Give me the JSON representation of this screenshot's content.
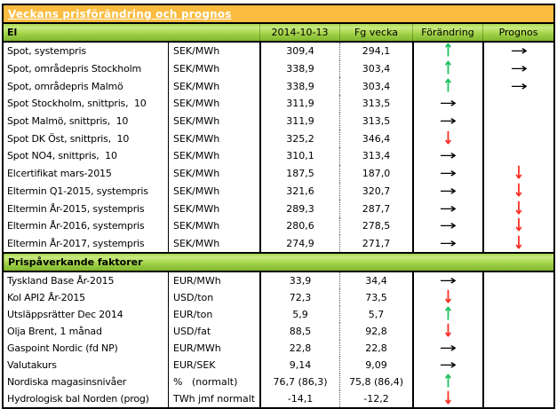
{
  "title": "Veckans prisförändring och prognos",
  "arrow_glyphs": {
    "up": "↑",
    "down": "↓",
    "flat": "→"
  },
  "colors": {
    "title_bar_bg": "#FBBC3F",
    "title_text": "#FFFFFF",
    "section_bar_green": "#8CC63F",
    "arrow_up": "#1FC15F",
    "arrow_down": "#FF2D23",
    "arrow_flat": "#000000"
  },
  "sections": [
    {
      "header": "El",
      "columns": [
        "2014-10-13",
        "Fg vecka",
        "Förändring",
        "Prognos"
      ],
      "rows": [
        {
          "label": "Spot, systempris",
          "unit": "SEK/MWh",
          "current": "309,4",
          "prev": "294,1",
          "change": "up",
          "forecast": "flat"
        },
        {
          "label": "Spot, områdepris Stockholm",
          "unit": "SEK/MWh",
          "current": "338,9",
          "prev": "303,4",
          "change": "up",
          "forecast": "flat"
        },
        {
          "label": "Spot, områdepris Malmö",
          "unit": "SEK/MWh",
          "current": "338,9",
          "prev": "303,4",
          "change": "up",
          "forecast": "flat"
        },
        {
          "label": "Spot Stockholm, snittpris,  10",
          "unit": "SEK/MWh",
          "current": "311,9",
          "prev": "313,5",
          "change": "flat",
          "forecast": ""
        },
        {
          "label": "Spot Malmö, snittpris,  10",
          "unit": "SEK/MWh",
          "current": "311,9",
          "prev": "313,5",
          "change": "flat",
          "forecast": ""
        },
        {
          "label": "Spot DK Öst, snittpris,  10",
          "unit": "SEK/MWh",
          "current": "325,2",
          "prev": "346,4",
          "change": "down",
          "forecast": ""
        },
        {
          "label": "Spot NO4, snittpris,  10",
          "unit": "SEK/MWh",
          "current": "310,1",
          "prev": "313,4",
          "change": "flat",
          "forecast": ""
        },
        {
          "label": "Elcertifikat mars-2015",
          "unit": "SEK/MWh",
          "current": "187,5",
          "prev": "187,0",
          "change": "flat",
          "forecast": "down"
        },
        {
          "label": "Eltermin Q1-2015, systempris",
          "unit": "SEK/MWh",
          "current": "321,6",
          "prev": "320,7",
          "change": "flat",
          "forecast": "down"
        },
        {
          "label": "Eltermin År-2015, systempris",
          "unit": "SEK/MWh",
          "current": "289,3",
          "prev": "287,7",
          "change": "flat",
          "forecast": "down"
        },
        {
          "label": "Eltermin År-2016, systempris",
          "unit": "SEK/MWh",
          "current": "280,6",
          "prev": "278,5",
          "change": "flat",
          "forecast": "down"
        },
        {
          "label": "Eltermin År-2017, systempris",
          "unit": "SEK/MWh",
          "current": "274,9",
          "prev": "271,7",
          "change": "flat",
          "forecast": "down"
        }
      ]
    },
    {
      "header": "Prispåverkande faktorer",
      "rows": [
        {
          "label": "Tyskland Base År-2015",
          "unit": "EUR/MWh",
          "current": "33,9",
          "prev": "34,4",
          "change": "flat",
          "forecast": ""
        },
        {
          "label": "Kol API2 År-2015",
          "unit": "USD/ton",
          "current": "72,3",
          "prev": "73,5",
          "change": "down",
          "forecast": ""
        },
        {
          "label": "Utsläppsrätter Dec 2014",
          "unit": "EUR/ton",
          "current": "5,9",
          "prev": "5,7",
          "change": "up",
          "forecast": ""
        },
        {
          "label": "Olja Brent, 1 månad",
          "unit": "USD/fat",
          "current": "88,5",
          "prev": "92,8",
          "change": "down",
          "forecast": ""
        },
        {
          "label": "Gaspoint Nordic (fd NP)",
          "unit": "EUR/MWh",
          "current": "22,8",
          "prev": "22,8",
          "change": "flat",
          "forecast": ""
        },
        {
          "label": "Valutakurs",
          "unit": "EUR/SEK",
          "current": "9,14",
          "prev": "9,09",
          "change": "flat",
          "forecast": ""
        },
        {
          "label": "Nordiska magasinsnivåer",
          "unit": "%   (normalt)",
          "current": "76,7 (86,3)",
          "prev": "75,8 (86,4)",
          "change": "up",
          "forecast": ""
        },
        {
          "label": "Hydrologisk bal Norden (prog)",
          "unit": "TWh jmf normalt",
          "current": "-14,1",
          "prev": "-12,2",
          "change": "down",
          "forecast": ""
        }
      ]
    }
  ]
}
